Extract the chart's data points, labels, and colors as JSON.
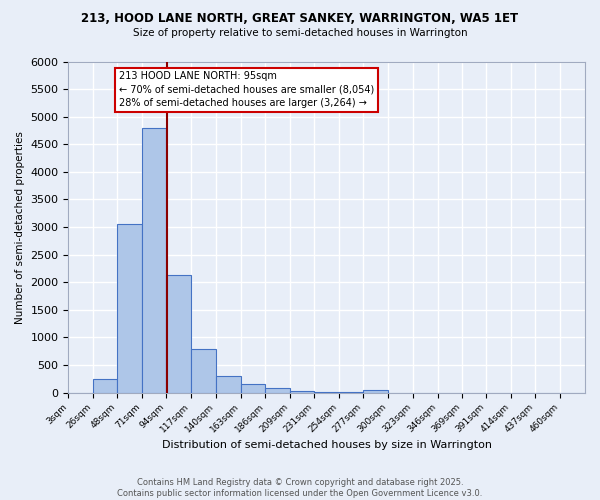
{
  "title1": "213, HOOD LANE NORTH, GREAT SANKEY, WARRINGTON, WA5 1ET",
  "title2": "Size of property relative to semi-detached houses in Warrington",
  "xlabel": "Distribution of semi-detached houses by size in Warrington",
  "ylabel": "Number of semi-detached properties",
  "footer1": "Contains HM Land Registry data © Crown copyright and database right 2025.",
  "footer2": "Contains public sector information licensed under the Open Government Licence v3.0.",
  "bar_labels": [
    "3sqm",
    "26sqm",
    "48sqm",
    "71sqm",
    "94sqm",
    "117sqm",
    "140sqm",
    "163sqm",
    "186sqm",
    "209sqm",
    "231sqm",
    "254sqm",
    "277sqm",
    "300sqm",
    "323sqm",
    "346sqm",
    "369sqm",
    "391sqm",
    "414sqm",
    "437sqm",
    "460sqm"
  ],
  "bar_values": [
    0,
    250,
    3050,
    4800,
    2130,
    790,
    300,
    155,
    80,
    35,
    5,
    5,
    50,
    0,
    0,
    0,
    0,
    0,
    0,
    0,
    0
  ],
  "bin_edges": [
    3,
    26,
    48,
    71,
    94,
    117,
    140,
    163,
    186,
    209,
    231,
    254,
    277,
    300,
    323,
    346,
    369,
    391,
    414,
    437,
    460
  ],
  "bar_color": "#aec6e8",
  "bar_edge_color": "#4472c4",
  "property_value": 95,
  "property_line_color": "#8b0000",
  "annotation_text": "213 HOOD LANE NORTH: 95sqm\n← 70% of semi-detached houses are smaller (8,054)\n28% of semi-detached houses are larger (3,264) →",
  "annotation_box_color": "#ffffff",
  "annotation_box_edge": "#cc0000",
  "ylim": [
    0,
    6000
  ],
  "yticks": [
    0,
    500,
    1000,
    1500,
    2000,
    2500,
    3000,
    3500,
    4000,
    4500,
    5000,
    5500,
    6000
  ],
  "background_color": "#e8eef8",
  "grid_color": "#ffffff"
}
